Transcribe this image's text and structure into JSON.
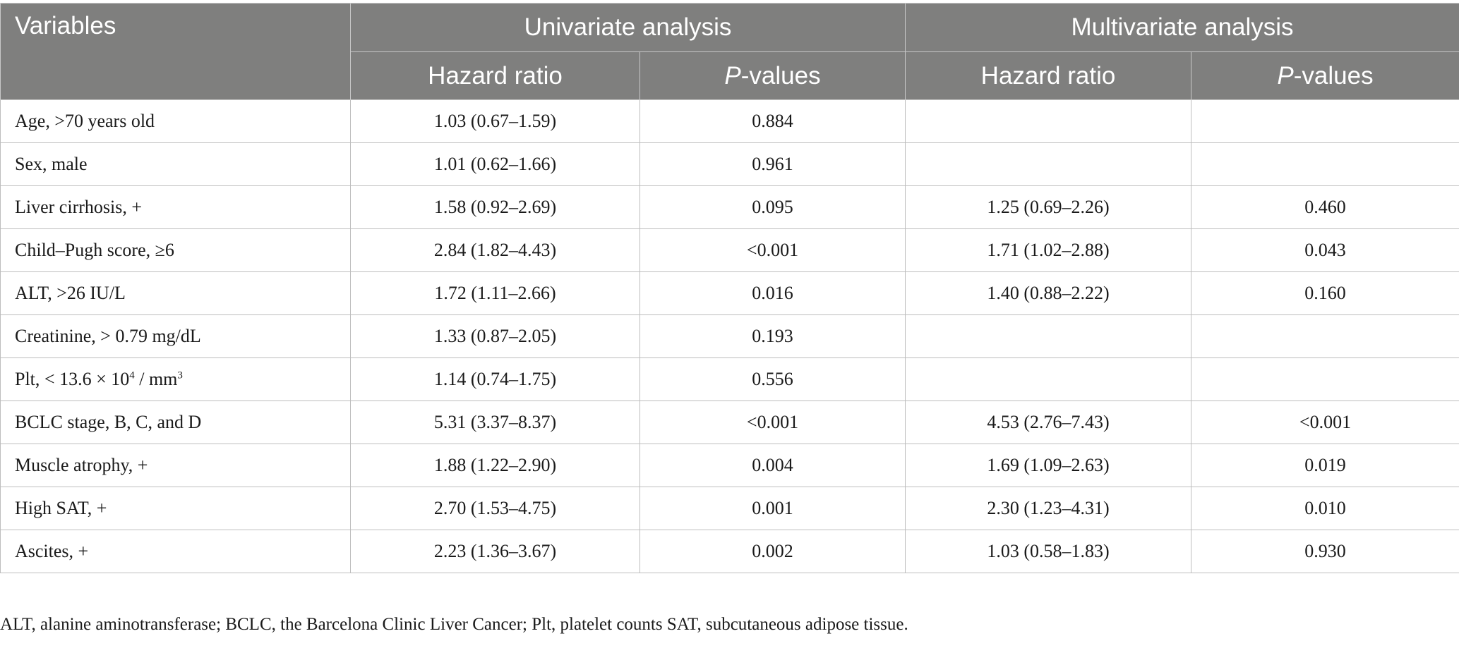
{
  "header": {
    "variables": "Variables",
    "univariate": "Univariate analysis",
    "multivariate": "Multivariate analysis",
    "hazard_ratio": "Hazard ratio",
    "p_prefix": "P",
    "p_suffix": "-values"
  },
  "rows": [
    {
      "variable": "Age, >70 years old",
      "uni_hr": "1.03 (0.67–1.59)",
      "uni_p": "0.884",
      "multi_hr": "",
      "multi_p": ""
    },
    {
      "variable": "Sex, male",
      "uni_hr": "1.01 (0.62–1.66)",
      "uni_p": "0.961",
      "multi_hr": "",
      "multi_p": ""
    },
    {
      "variable": "Liver cirrhosis, +",
      "uni_hr": "1.58 (0.92–2.69)",
      "uni_p": "0.095",
      "multi_hr": "1.25 (0.69–2.26)",
      "multi_p": "0.460"
    },
    {
      "variable": "Child–Pugh score, ≥6",
      "uni_hr": "2.84 (1.82–4.43)",
      "uni_p": "<0.001",
      "multi_hr": "1.71 (1.02–2.88)",
      "multi_p": "0.043"
    },
    {
      "variable": "ALT, >26 IU/L",
      "uni_hr": "1.72 (1.11–2.66)",
      "uni_p": "0.016",
      "multi_hr": "1.40 (0.88–2.22)",
      "multi_p": "0.160"
    },
    {
      "variable": "Creatinine, > 0.79 mg/dL",
      "uni_hr": "1.33 (0.87–2.05)",
      "uni_p": "0.193",
      "multi_hr": "",
      "multi_p": ""
    },
    {
      "variable_parts": {
        "a": "Plt, < 13.6 × 10",
        "sup1": "4",
        "b": " / mm",
        "sup2": "3"
      },
      "uni_hr": "1.14 (0.74–1.75)",
      "uni_p": "0.556",
      "multi_hr": "",
      "multi_p": ""
    },
    {
      "variable": "BCLC stage, B, C, and D",
      "uni_hr": "5.31 (3.37–8.37)",
      "uni_p": "<0.001",
      "multi_hr": "4.53 (2.76–7.43)",
      "multi_p": "<0.001"
    },
    {
      "variable": "Muscle atrophy, +",
      "uni_hr": "1.88 (1.22–2.90)",
      "uni_p": "0.004",
      "multi_hr": "1.69 (1.09–2.63)",
      "multi_p": "0.019"
    },
    {
      "variable": "High SAT, +",
      "uni_hr": "2.70 (1.53–4.75)",
      "uni_p": "0.001",
      "multi_hr": "2.30 (1.23–4.31)",
      "multi_p": "0.010"
    },
    {
      "variable": "Ascites, +",
      "uni_hr": "2.23 (1.36–3.67)",
      "uni_p": "0.002",
      "multi_hr": "1.03 (0.58–1.83)",
      "multi_p": "0.930"
    }
  ],
  "footnote": "ALT, alanine aminotransferase; BCLC, the Barcelona Clinic Liver Cancer; Plt, platelet counts SAT, subcutaneous adipose tissue."
}
